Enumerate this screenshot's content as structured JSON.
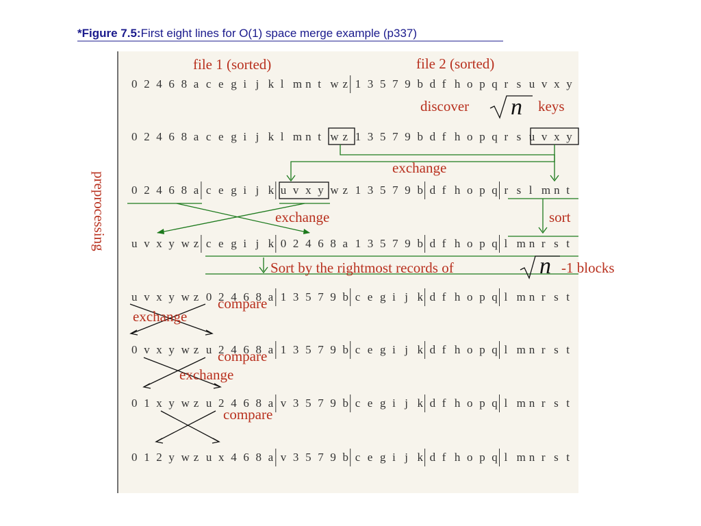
{
  "title": {
    "label": "*Figure 7.5:",
    "text": "First eight lines for O(1) space merge example (p337)"
  },
  "labels": {
    "file1": "file 1 (sorted)",
    "file2": "file 2 (sorted)",
    "discover": "discover",
    "sqrt1": "n",
    "keys": "keys",
    "exchange1": "exchange",
    "exchange2": "exchange",
    "sort": "sort",
    "sortby": "Sort by the rightmost records of",
    "sqrt2": "n",
    "blocks": "-1 blocks",
    "compare1": "compare",
    "exchange3": "exchange",
    "compare2": "compare",
    "exchange4": "exchange",
    "compare3": "compare",
    "preprocessing": "preprocessing"
  },
  "rows": [
    [
      "0 2 4 6 8 a c e g i j k l m n t w z",
      "1 3 5 7 9 b d f h o p q r s u v x y"
    ],
    [
      "0 2 4 6 8 a c e g i j k l m n t w z 1 3 5 7 9 b d f h o p q r s u v x y"
    ],
    [
      "0 2 4 6 8 a",
      "c e g i j k",
      "u v x y w z 1 3 5 7 9 b",
      "d f h o p q",
      "r s l m n t"
    ],
    [
      "u v x y w z",
      "c e g i j k",
      "0 2 4 6 8 a 1 3 5 7 9 b",
      "d f h o p q",
      "l m n r s t"
    ],
    [
      "u v x y w z 0 2 4 6 8 a",
      "1 3 5 7 9 b",
      "c e g i j k",
      "d f h o p q",
      "l m n r s t"
    ],
    [
      "0 v x y w z u 2 4 6 8 a",
      "1 3 5 7 9 b",
      "c e g i j k",
      "d f h o p q",
      "l m n r s t"
    ],
    [
      "0 1 x y w z u 2 4 6 8 a",
      "v 3 5 7 9 b",
      "c e g i j k",
      "d f h o p q",
      "l m n r s t"
    ],
    [
      "0 1 2 y w z u x 4 6 8 a",
      "v 3 5 7 9 b",
      "c e g i j k",
      "d f h o p q",
      "l m n r s t"
    ]
  ]
}
